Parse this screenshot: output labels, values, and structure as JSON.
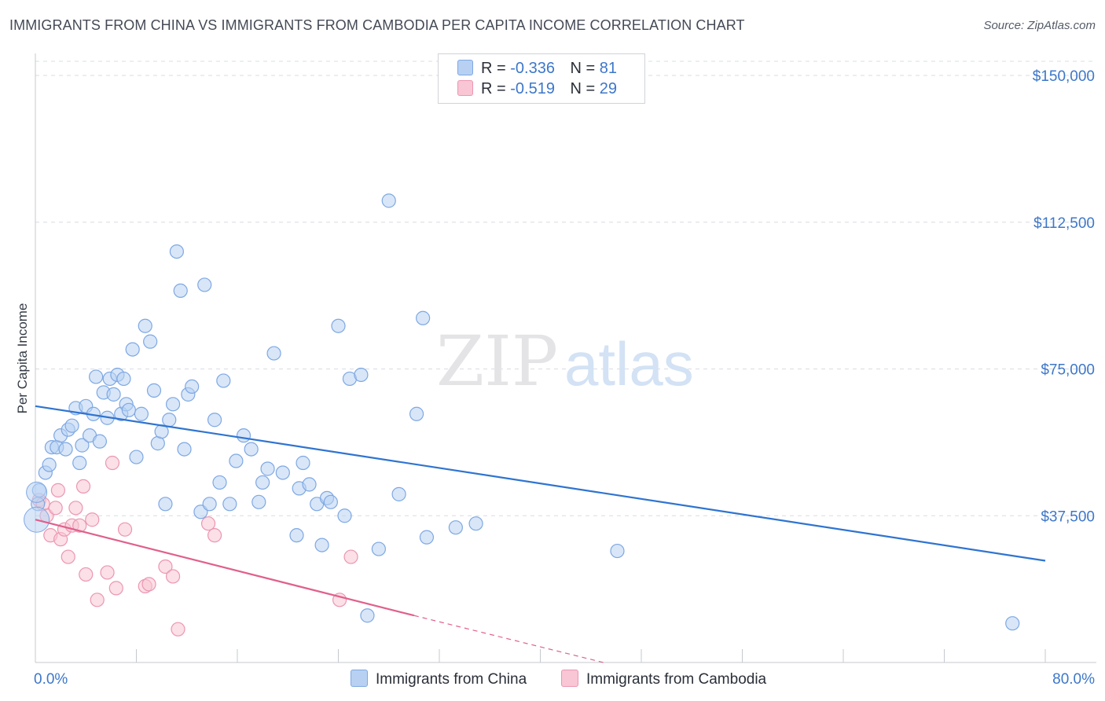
{
  "title": "IMMIGRANTS FROM CHINA VS IMMIGRANTS FROM CAMBODIA PER CAPITA INCOME CORRELATION CHART",
  "source": "Source: ZipAtlas.com",
  "watermark": {
    "zip": "ZIP",
    "atlas": "atlas"
  },
  "legend": {
    "china": {
      "r_label": "R =",
      "r_value": "-0.336",
      "n_label": "N =",
      "n_value": "81"
    },
    "cambodia": {
      "r_label": "R =",
      "r_value": "-0.519",
      "n_label": "N =",
      "n_value": "29"
    }
  },
  "colors": {
    "china_fill": "#b8d1f2",
    "china_stroke": "#7ea8e3",
    "china_line": "#2f74d0",
    "cambodia_fill": "#f8c6d4",
    "cambodia_stroke": "#ec96b1",
    "cambodia_line": "#e0608c",
    "axis_text": "#3d77c9",
    "grid": "#d8dce2"
  },
  "chart_data": {
    "type": "scatter",
    "title": "IMMIGRANTS FROM CHINA VS IMMIGRANTS FROM CAMBODIA PER CAPITA INCOME CORRELATION CHART",
    "xlabel": "",
    "ylabel": "Per Capita Income",
    "xlim": [
      0,
      80
    ],
    "ylim": [
      0,
      150000
    ],
    "x_tick_labels": [
      "0.0%",
      "80.0%"
    ],
    "y_ticks": [
      37500,
      75000,
      112500,
      150000
    ],
    "y_tick_labels": [
      "$37,500",
      "$75,000",
      "$112,500",
      "$150,000"
    ],
    "grid": true,
    "legend_position": "top-center",
    "series": [
      {
        "name": "Immigrants from China",
        "R": -0.336,
        "N": 81,
        "trend": {
          "x0": 0,
          "y0": 65500,
          "x1": 80,
          "y1": 26000
        },
        "points": [
          [
            0.2,
            40500
          ],
          [
            0.3,
            44000
          ],
          [
            0.8,
            48500
          ],
          [
            1.1,
            50500
          ],
          [
            1.3,
            55000
          ],
          [
            1.7,
            55000
          ],
          [
            2.0,
            58000
          ],
          [
            2.4,
            54500
          ],
          [
            2.6,
            59500
          ],
          [
            2.9,
            60500
          ],
          [
            3.2,
            65000
          ],
          [
            3.5,
            51000
          ],
          [
            3.7,
            55500
          ],
          [
            4.0,
            65500
          ],
          [
            4.3,
            58000
          ],
          [
            4.6,
            63500
          ],
          [
            4.8,
            73000
          ],
          [
            5.1,
            56500
          ],
          [
            5.4,
            69000
          ],
          [
            5.7,
            62500
          ],
          [
            5.9,
            72500
          ],
          [
            6.2,
            68500
          ],
          [
            6.5,
            73500
          ],
          [
            6.8,
            63500
          ],
          [
            7.0,
            72500
          ],
          [
            7.2,
            66000
          ],
          [
            7.4,
            64500
          ],
          [
            7.7,
            80000
          ],
          [
            8.0,
            52500
          ],
          [
            8.4,
            63500
          ],
          [
            8.7,
            86000
          ],
          [
            9.1,
            82000
          ],
          [
            9.4,
            69500
          ],
          [
            9.7,
            56000
          ],
          [
            10.0,
            59000
          ],
          [
            10.3,
            40500
          ],
          [
            10.6,
            62000
          ],
          [
            10.9,
            66000
          ],
          [
            11.2,
            105000
          ],
          [
            11.5,
            95000
          ],
          [
            11.8,
            54500
          ],
          [
            12.1,
            68500
          ],
          [
            12.4,
            70500
          ],
          [
            13.1,
            38500
          ],
          [
            13.4,
            96500
          ],
          [
            13.8,
            40500
          ],
          [
            14.2,
            62000
          ],
          [
            14.6,
            46000
          ],
          [
            14.9,
            72000
          ],
          [
            15.4,
            40500
          ],
          [
            15.9,
            51500
          ],
          [
            16.5,
            58000
          ],
          [
            17.1,
            54500
          ],
          [
            17.7,
            41000
          ],
          [
            18.0,
            46000
          ],
          [
            18.4,
            49500
          ],
          [
            18.9,
            79000
          ],
          [
            19.6,
            48500
          ],
          [
            20.7,
            32500
          ],
          [
            20.9,
            44500
          ],
          [
            21.2,
            51000
          ],
          [
            21.7,
            45500
          ],
          [
            22.3,
            40500
          ],
          [
            22.7,
            30000
          ],
          [
            23.1,
            42000
          ],
          [
            23.4,
            41000
          ],
          [
            24.0,
            86000
          ],
          [
            24.5,
            37500
          ],
          [
            24.9,
            72500
          ],
          [
            25.8,
            73500
          ],
          [
            26.3,
            12000
          ],
          [
            27.2,
            29000
          ],
          [
            28.0,
            118000
          ],
          [
            28.8,
            43000
          ],
          [
            30.2,
            63500
          ],
          [
            30.7,
            88000
          ],
          [
            31.0,
            32000
          ],
          [
            33.3,
            34500
          ],
          [
            34.9,
            35500
          ],
          [
            46.1,
            28500
          ],
          [
            77.4,
            10000
          ]
        ]
      },
      {
        "name": "Immigrants from Cambodia",
        "R": -0.519,
        "N": 29,
        "trend": {
          "x0": 0,
          "y0": 36500,
          "x1": 30,
          "y1": 12000,
          "dash_to": {
            "x1": 45,
            "y1": 0
          }
        },
        "points": [
          [
            0.3,
            41500
          ],
          [
            0.6,
            40500
          ],
          [
            0.9,
            37500
          ],
          [
            1.2,
            32500
          ],
          [
            1.6,
            39500
          ],
          [
            1.8,
            44000
          ],
          [
            2.0,
            31500
          ],
          [
            2.3,
            34000
          ],
          [
            2.6,
            27000
          ],
          [
            2.9,
            35000
          ],
          [
            3.2,
            39500
          ],
          [
            3.5,
            35000
          ],
          [
            3.8,
            45000
          ],
          [
            4.0,
            22500
          ],
          [
            4.5,
            36500
          ],
          [
            4.9,
            16000
          ],
          [
            5.7,
            23000
          ],
          [
            6.1,
            51000
          ],
          [
            6.4,
            19000
          ],
          [
            7.1,
            34000
          ],
          [
            8.7,
            19500
          ],
          [
            9.0,
            20000
          ],
          [
            10.3,
            24500
          ],
          [
            10.9,
            22000
          ],
          [
            11.3,
            8500
          ],
          [
            13.7,
            35500
          ],
          [
            14.2,
            32500
          ],
          [
            24.1,
            16000
          ],
          [
            25.0,
            27000
          ]
        ]
      }
    ]
  },
  "bottom_legend": {
    "china": "Immigrants from China",
    "cambodia": "Immigrants from Cambodia"
  }
}
